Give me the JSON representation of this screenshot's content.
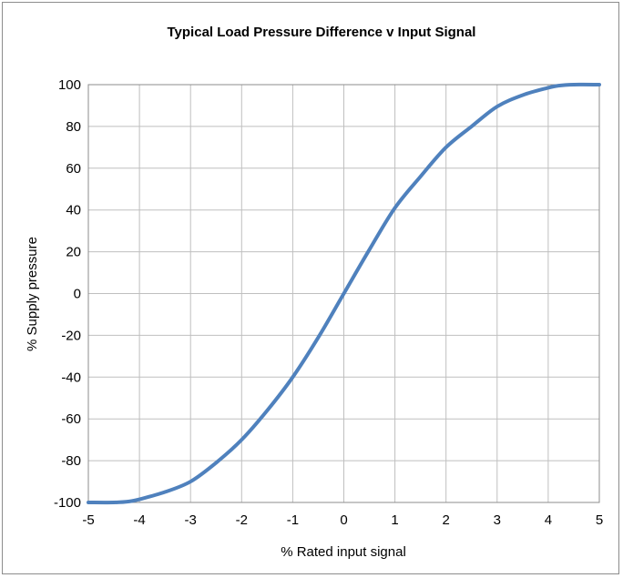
{
  "chart_data": {
    "type": "line",
    "title": "Typical Load Pressure Difference v Input Signal",
    "xlabel": "% Rated input signal",
    "ylabel": "% Supply pressure",
    "xlim": [
      -5,
      5
    ],
    "ylim": [
      -100,
      100
    ],
    "x_ticks": [
      "-5",
      "-4",
      "-3",
      "-2",
      "-1",
      "0",
      "1",
      "2",
      "3",
      "4",
      "5"
    ],
    "y_ticks": [
      "-100",
      "-80",
      "-60",
      "-40",
      "-20",
      "0",
      "20",
      "40",
      "60",
      "80",
      "100"
    ],
    "grid": true,
    "legend": "none",
    "series": [
      {
        "color": "#4F81BD",
        "x": [
          -5,
          -4.5,
          -4.2,
          -4,
          -3.5,
          -3,
          -2.5,
          -2,
          -1.5,
          -1,
          -0.5,
          0,
          0.5,
          1,
          1.5,
          2,
          2.5,
          3,
          3.5,
          4,
          4.2,
          4.5,
          5
        ],
        "y": [
          -100,
          -100,
          -99.5,
          -98.5,
          -95,
          -90,
          -81,
          -70,
          -56,
          -40,
          -21,
          0,
          21,
          41,
          56,
          70,
          80,
          89.5,
          95,
          98.5,
          99.5,
          100,
          100
        ]
      }
    ]
  }
}
